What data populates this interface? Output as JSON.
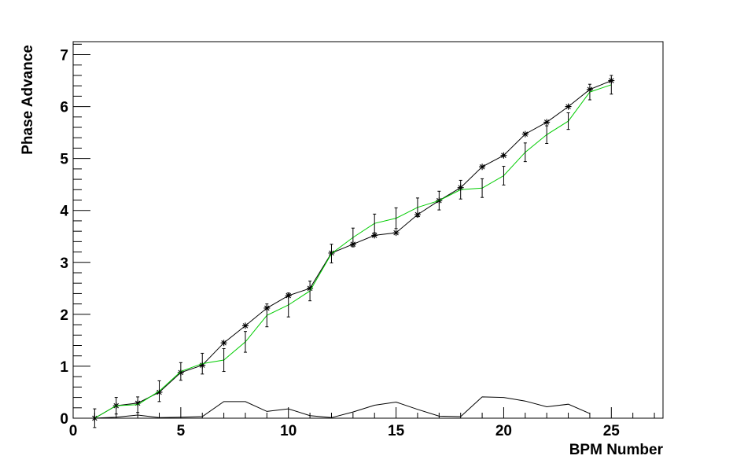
{
  "chart_data": {
    "type": "line",
    "title": "",
    "xlabel": "BPM Number",
    "ylabel": "Phase Advance",
    "xlim": [
      0,
      27.4
    ],
    "ylim": [
      0,
      7.25
    ],
    "x_major_ticks": [
      0,
      5,
      10,
      15,
      20,
      25
    ],
    "x_minor_step": 1,
    "y_major_ticks": [
      0,
      1,
      2,
      3,
      4,
      5,
      6,
      7
    ],
    "y_minor_step": 0.2,
    "grid": false,
    "legend": "none",
    "series": [
      {
        "color": "#000000",
        "marker": "asterisk",
        "x": [
          1,
          2,
          3,
          4,
          5,
          6,
          7,
          8,
          9,
          10,
          11,
          12,
          13,
          14,
          15,
          16,
          17,
          18,
          19,
          20,
          21,
          22,
          23,
          24,
          25
        ],
        "values": [
          0.0,
          0.24,
          0.29,
          0.5,
          0.88,
          1.02,
          1.45,
          1.78,
          2.12,
          2.36,
          2.5,
          3.18,
          3.35,
          3.52,
          3.57,
          3.92,
          4.19,
          4.44,
          4.84,
          5.06,
          5.47,
          5.7,
          6.0,
          6.33,
          6.5
        ]
      },
      {
        "color": "#00cc00",
        "marker": "none",
        "x": [
          1,
          2,
          3,
          4,
          5,
          6,
          7,
          8,
          9,
          10,
          11,
          12,
          13,
          14,
          15,
          16,
          17,
          18,
          19,
          20,
          21,
          22,
          23,
          24,
          25
        ],
        "values": [
          0.0,
          0.24,
          0.26,
          0.52,
          0.9,
          1.05,
          1.12,
          1.47,
          1.98,
          2.18,
          2.45,
          3.17,
          3.48,
          3.75,
          3.85,
          4.06,
          4.19,
          4.4,
          4.43,
          4.67,
          5.12,
          5.46,
          5.72,
          6.28,
          6.42
        ],
        "errors": [
          0.18,
          0.16,
          0.15,
          0.2,
          0.17,
          0.2,
          0.22,
          0.2,
          0.22,
          0.23,
          0.19,
          0.18,
          0.18,
          0.18,
          0.2,
          0.18,
          0.18,
          0.18,
          0.18,
          0.18,
          0.18,
          0.17,
          0.16,
          0.15,
          0.18
        ]
      },
      {
        "color": "#000000",
        "marker": "none",
        "x": [
          1,
          2,
          3,
          4,
          5,
          6,
          7,
          8,
          9,
          10,
          11,
          12,
          13,
          14,
          15,
          16,
          17,
          18,
          19,
          20,
          21,
          22,
          23,
          24
        ],
        "values": [
          0.0,
          0.02,
          0.06,
          0.01,
          0.02,
          0.03,
          0.32,
          0.32,
          0.13,
          0.18,
          0.05,
          0.01,
          0.12,
          0.25,
          0.31,
          0.17,
          0.04,
          0.03,
          0.41,
          0.4,
          0.33,
          0.22,
          0.27,
          0.09
        ]
      }
    ]
  }
}
